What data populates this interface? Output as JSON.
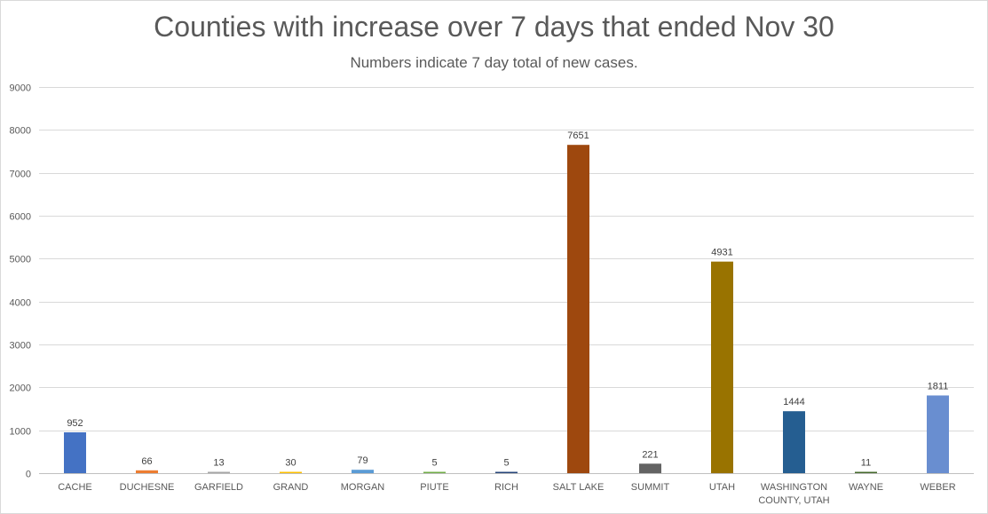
{
  "chart_data": {
    "type": "bar",
    "title": "Counties with increase over 7 days that ended Nov 30",
    "subtitle": "Numbers indicate 7 day total of new cases.",
    "xlabel": "",
    "ylabel": "",
    "ylim": [
      0,
      9000
    ],
    "yticks": [
      "0",
      "1000",
      "2000",
      "3000",
      "4000",
      "5000",
      "6000",
      "7000",
      "8000",
      "9000"
    ],
    "grid": true,
    "categories": [
      [
        "CACHE"
      ],
      [
        "DUCHESNE"
      ],
      [
        "GARFIELD"
      ],
      [
        "GRAND"
      ],
      [
        "MORGAN"
      ],
      [
        "PIUTE"
      ],
      [
        "RICH"
      ],
      [
        "SALT LAKE"
      ],
      [
        "SUMMIT"
      ],
      [
        "UTAH"
      ],
      [
        "WASHINGTON",
        "COUNTY, UTAH"
      ],
      [
        "WAYNE"
      ],
      [
        "WEBER"
      ]
    ],
    "values": [
      952,
      66,
      13,
      30,
      79,
      5,
      5,
      7651,
      221,
      4931,
      1444,
      11,
      1811
    ],
    "data_labels": [
      "952",
      "66",
      "13",
      "30",
      "79",
      "5",
      "5",
      "7651",
      "221",
      "4931",
      "1444",
      "11",
      "1811"
    ],
    "colors": [
      "#4472c4",
      "#ed7d31",
      "#a5a5a5",
      "#ffc000",
      "#5b9bd5",
      "#70ad47",
      "#264478",
      "#9e480e",
      "#636363",
      "#997300",
      "#255e91",
      "#43682b",
      "#698ed0"
    ]
  }
}
